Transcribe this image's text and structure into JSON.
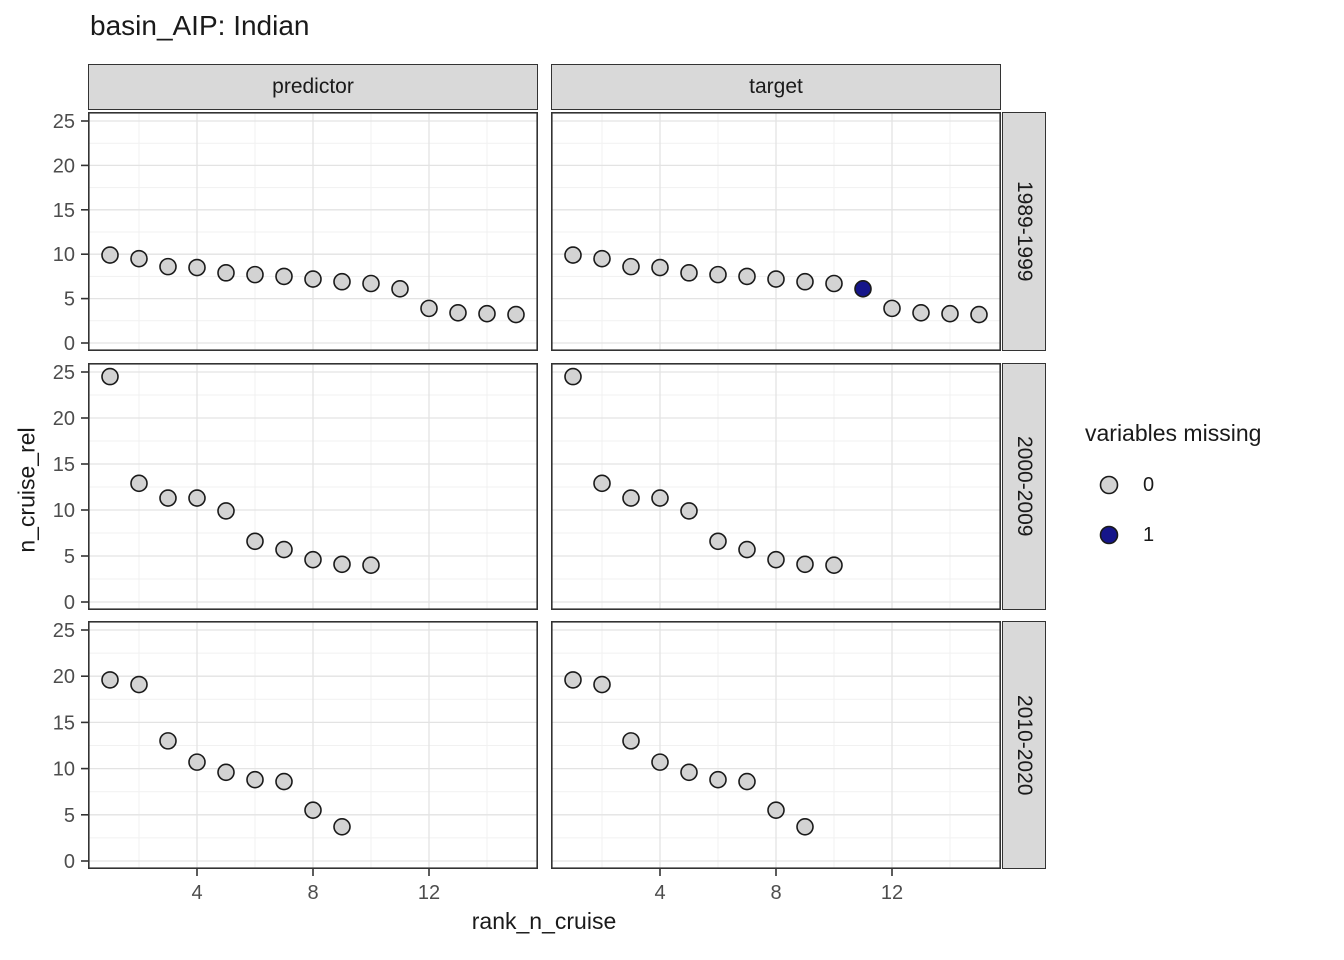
{
  "title": "basin_AIP: Indian",
  "facets": {
    "columns": [
      "predictor",
      "target"
    ],
    "rows": [
      "1989-1999",
      "2000-2009",
      "2010-2020"
    ]
  },
  "axes": {
    "x": {
      "label": "rank_n_cruise",
      "tick_labels": [
        "4",
        "8",
        "12"
      ]
    },
    "y": {
      "label": "n_cruise_rel",
      "tick_labels": [
        "25",
        "20",
        "15",
        "10",
        "5",
        "0"
      ]
    }
  },
  "legend": {
    "title": "variables missing",
    "items": [
      {
        "label": "0",
        "color": "#d3d3d3"
      },
      {
        "label": "1",
        "color": "#15158a"
      }
    ]
  },
  "colors": {
    "point_stroke": "#1a1a1a",
    "strip_bg": "#d9d9d9",
    "panel_border": "#333333",
    "grid_major": "#e3e3e3",
    "grid_minor": "#f1f1f1",
    "tick_mark": "#333333",
    "tick_label": "#4d4d4d"
  },
  "chart_data": {
    "type": "scatter",
    "title": "basin_AIP: Indian",
    "xlabel": "rank_n_cruise",
    "ylabel": "n_cruise_rel",
    "facet_cols": [
      "predictor",
      "target"
    ],
    "facet_rows": [
      "1989-1999",
      "2000-2009",
      "2010-2020"
    ],
    "xlim": [
      0.25,
      15.75
    ],
    "ylim": [
      -1.25,
      26.25
    ],
    "x_major_ticks": [
      4,
      8,
      12
    ],
    "x_minor_ticks": [
      2,
      6,
      10,
      14
    ],
    "y_major_ticks": [
      0,
      5,
      10,
      15,
      20,
      25
    ],
    "y_minor_ticks": [
      2.5,
      7.5,
      12.5,
      17.5,
      22.5
    ],
    "grid": true,
    "legend_title": "variables missing",
    "legend_position": "right",
    "color_key": "missing",
    "panels": [
      {
        "row": "1989-1999",
        "col": "predictor",
        "x": [
          1,
          2,
          3,
          4,
          5,
          6,
          7,
          8,
          9,
          10,
          11,
          12,
          13,
          14,
          15
        ],
        "y": [
          9.9,
          9.5,
          8.6,
          8.5,
          7.9,
          7.7,
          7.5,
          7.2,
          6.9,
          6.7,
          6.1,
          3.9,
          3.4,
          3.3,
          3.2
        ],
        "missing": [
          0,
          0,
          0,
          0,
          0,
          0,
          0,
          0,
          0,
          0,
          0,
          0,
          0,
          0,
          0
        ]
      },
      {
        "row": "1989-1999",
        "col": "target",
        "x": [
          1,
          2,
          3,
          4,
          5,
          6,
          7,
          8,
          9,
          10,
          11,
          12,
          13,
          14,
          15
        ],
        "y": [
          9.9,
          9.5,
          8.6,
          8.5,
          7.9,
          7.7,
          7.5,
          7.2,
          6.9,
          6.7,
          6.1,
          3.9,
          3.4,
          3.3,
          3.2
        ],
        "missing": [
          0,
          0,
          0,
          0,
          0,
          0,
          0,
          0,
          0,
          0,
          1,
          0,
          0,
          0,
          0
        ]
      },
      {
        "row": "2000-2009",
        "col": "predictor",
        "x": [
          1,
          2,
          3,
          4,
          5,
          6,
          7,
          8,
          9,
          10
        ],
        "y": [
          24.5,
          12.9,
          11.3,
          11.3,
          9.9,
          6.6,
          5.7,
          4.6,
          4.1,
          4.0
        ],
        "missing": [
          0,
          0,
          0,
          0,
          0,
          0,
          0,
          0,
          0,
          0
        ]
      },
      {
        "row": "2000-2009",
        "col": "target",
        "x": [
          1,
          2,
          3,
          4,
          5,
          6,
          7,
          8,
          9,
          10
        ],
        "y": [
          24.5,
          12.9,
          11.3,
          11.3,
          9.9,
          6.6,
          5.7,
          4.6,
          4.1,
          4.0
        ],
        "missing": [
          0,
          0,
          0,
          0,
          0,
          0,
          0,
          0,
          0,
          0
        ]
      },
      {
        "row": "2010-2020",
        "col": "predictor",
        "x": [
          1,
          2,
          3,
          4,
          5,
          6,
          7,
          8,
          9
        ],
        "y": [
          19.6,
          19.1,
          13.0,
          10.7,
          9.6,
          8.8,
          8.6,
          5.5,
          3.7
        ],
        "missing": [
          0,
          0,
          0,
          0,
          0,
          0,
          0,
          0,
          0
        ]
      },
      {
        "row": "2010-2020",
        "col": "target",
        "x": [
          1,
          2,
          3,
          4,
          5,
          6,
          7,
          8,
          9
        ],
        "y": [
          19.6,
          19.1,
          13.0,
          10.7,
          9.6,
          8.8,
          8.6,
          5.5,
          3.7
        ],
        "missing": [
          0,
          0,
          0,
          0,
          0,
          0,
          0,
          0,
          0
        ]
      }
    ]
  }
}
